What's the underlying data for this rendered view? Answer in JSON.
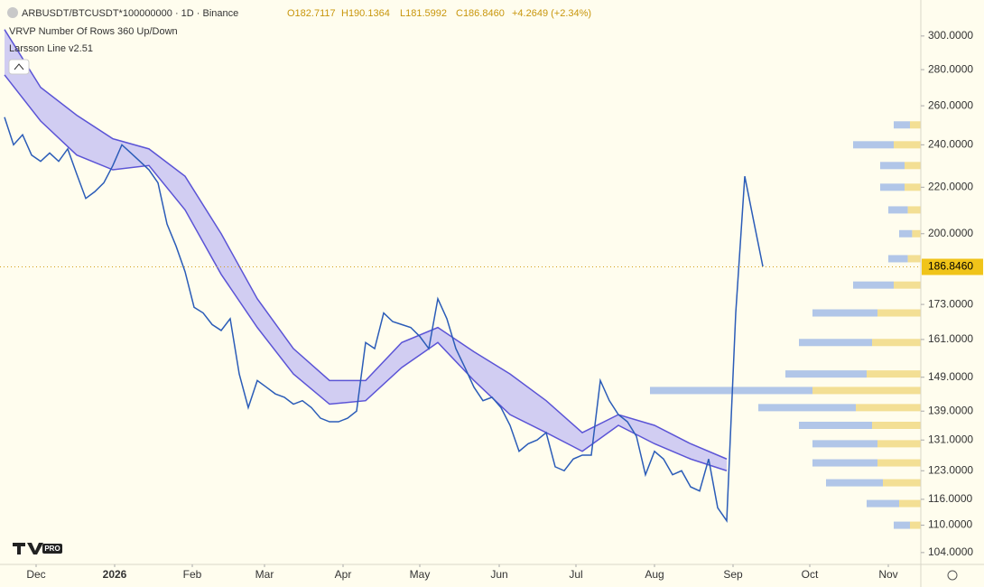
{
  "header": {
    "symbol": "ARBUSDT/BTCUSDT*100000000 · 1D · Binance",
    "open": "O182.7117",
    "high": "H190.1364",
    "low": "L181.5992",
    "close": "C186.8460",
    "change": "+4.2649 (+2.34%)",
    "indicators": [
      "VRVP Number Of Rows 360 Up/Down",
      "Larsson Line v2.51"
    ],
    "logo_text": "PRO"
  },
  "chart_data": {
    "type": "line",
    "log_scale": true,
    "ylim": [
      101.5,
      320
    ],
    "yticks": [
      {
        "value": 300,
        "label": "300.0000"
      },
      {
        "value": 280,
        "label": "280.0000"
      },
      {
        "value": 260,
        "label": "260.0000"
      },
      {
        "value": 240,
        "label": "240.0000"
      },
      {
        "value": 220,
        "label": "220.0000"
      },
      {
        "value": 200,
        "label": "200.0000"
      },
      {
        "value": 173,
        "label": "173.0000"
      },
      {
        "value": 161,
        "label": "161.0000"
      },
      {
        "value": 149,
        "label": "149.0000"
      },
      {
        "value": 139,
        "label": "139.0000"
      },
      {
        "value": 131,
        "label": "131.0000"
      },
      {
        "value": 123,
        "label": "123.0000"
      },
      {
        "value": 116,
        "label": "116.0000"
      },
      {
        "value": 110,
        "label": "110.0000"
      },
      {
        "value": 104,
        "label": "104.0000"
      }
    ],
    "xlim": [
      0,
      101.5
    ],
    "xticks": [
      {
        "value": 3.5,
        "label": "Dec"
      },
      {
        "value": 12.2,
        "label": "2026"
      },
      {
        "value": 20.8,
        "label": "Feb"
      },
      {
        "value": 28.8,
        "label": "Mar"
      },
      {
        "value": 37.5,
        "label": "Apr"
      },
      {
        "value": 46,
        "label": "May"
      },
      {
        "value": 54.8,
        "label": "Jun"
      },
      {
        "value": 63.3,
        "label": "Jul"
      },
      {
        "value": 72,
        "label": "Aug"
      },
      {
        "value": 80.7,
        "label": "Sep"
      },
      {
        "value": 89.2,
        "label": "Oct"
      },
      {
        "value": 97.9,
        "label": "Nov"
      }
    ],
    "last_price": {
      "value": 186.846,
      "label": "186.8460"
    },
    "series": [
      {
        "name": "ARBUSDT/BTCUSDT",
        "color": "#2b5cb8",
        "values": [
          254,
          240,
          245,
          235,
          232,
          236,
          232,
          238,
          226,
          215,
          218,
          222,
          230,
          240,
          236,
          232,
          228,
          222,
          204,
          195,
          185,
          172,
          170,
          166,
          164,
          168,
          150,
          140,
          148,
          146,
          144,
          143,
          141,
          142,
          140,
          137,
          136,
          136,
          137,
          139,
          160,
          158,
          170,
          167,
          166,
          165,
          162,
          158,
          175,
          168,
          158,
          152,
          146,
          142,
          143,
          140,
          135,
          128,
          130,
          131,
          133,
          124,
          123,
          126,
          127,
          127,
          148,
          142,
          138,
          136,
          132,
          122,
          128,
          126,
          122,
          123,
          119,
          118,
          126,
          114,
          111,
          170,
          225,
          205,
          187
        ]
      }
    ],
    "band": {
      "x": [
        0,
        4,
        8,
        12,
        16,
        20,
        24,
        28,
        32,
        36,
        40,
        44,
        48,
        52,
        56,
        60,
        64,
        68,
        72,
        76,
        80
      ],
      "upper": [
        304,
        270,
        255,
        243,
        238,
        225,
        200,
        175,
        158,
        148,
        148,
        160,
        165,
        157,
        150,
        142,
        133,
        138,
        135,
        130,
        126
      ],
      "lower": [
        277,
        252,
        235,
        228,
        230,
        210,
        184,
        165,
        150,
        141,
        142,
        152,
        160,
        148,
        138,
        133,
        128,
        135,
        130,
        126,
        123
      ],
      "color": "#5b54d6",
      "fill": "#c9c4f2"
    },
    "volume_profile": {
      "levels": [
        250,
        240,
        230,
        220,
        210,
        200,
        190,
        180,
        170,
        160,
        150,
        145,
        140,
        135,
        130,
        125,
        120,
        115,
        110
      ],
      "values": [
        10,
        25,
        15,
        15,
        12,
        8,
        12,
        25,
        40,
        45,
        50,
        100,
        60,
        45,
        40,
        40,
        35,
        20,
        10
      ],
      "color": "#9db8e6",
      "color2": "#f2dc8a"
    }
  }
}
